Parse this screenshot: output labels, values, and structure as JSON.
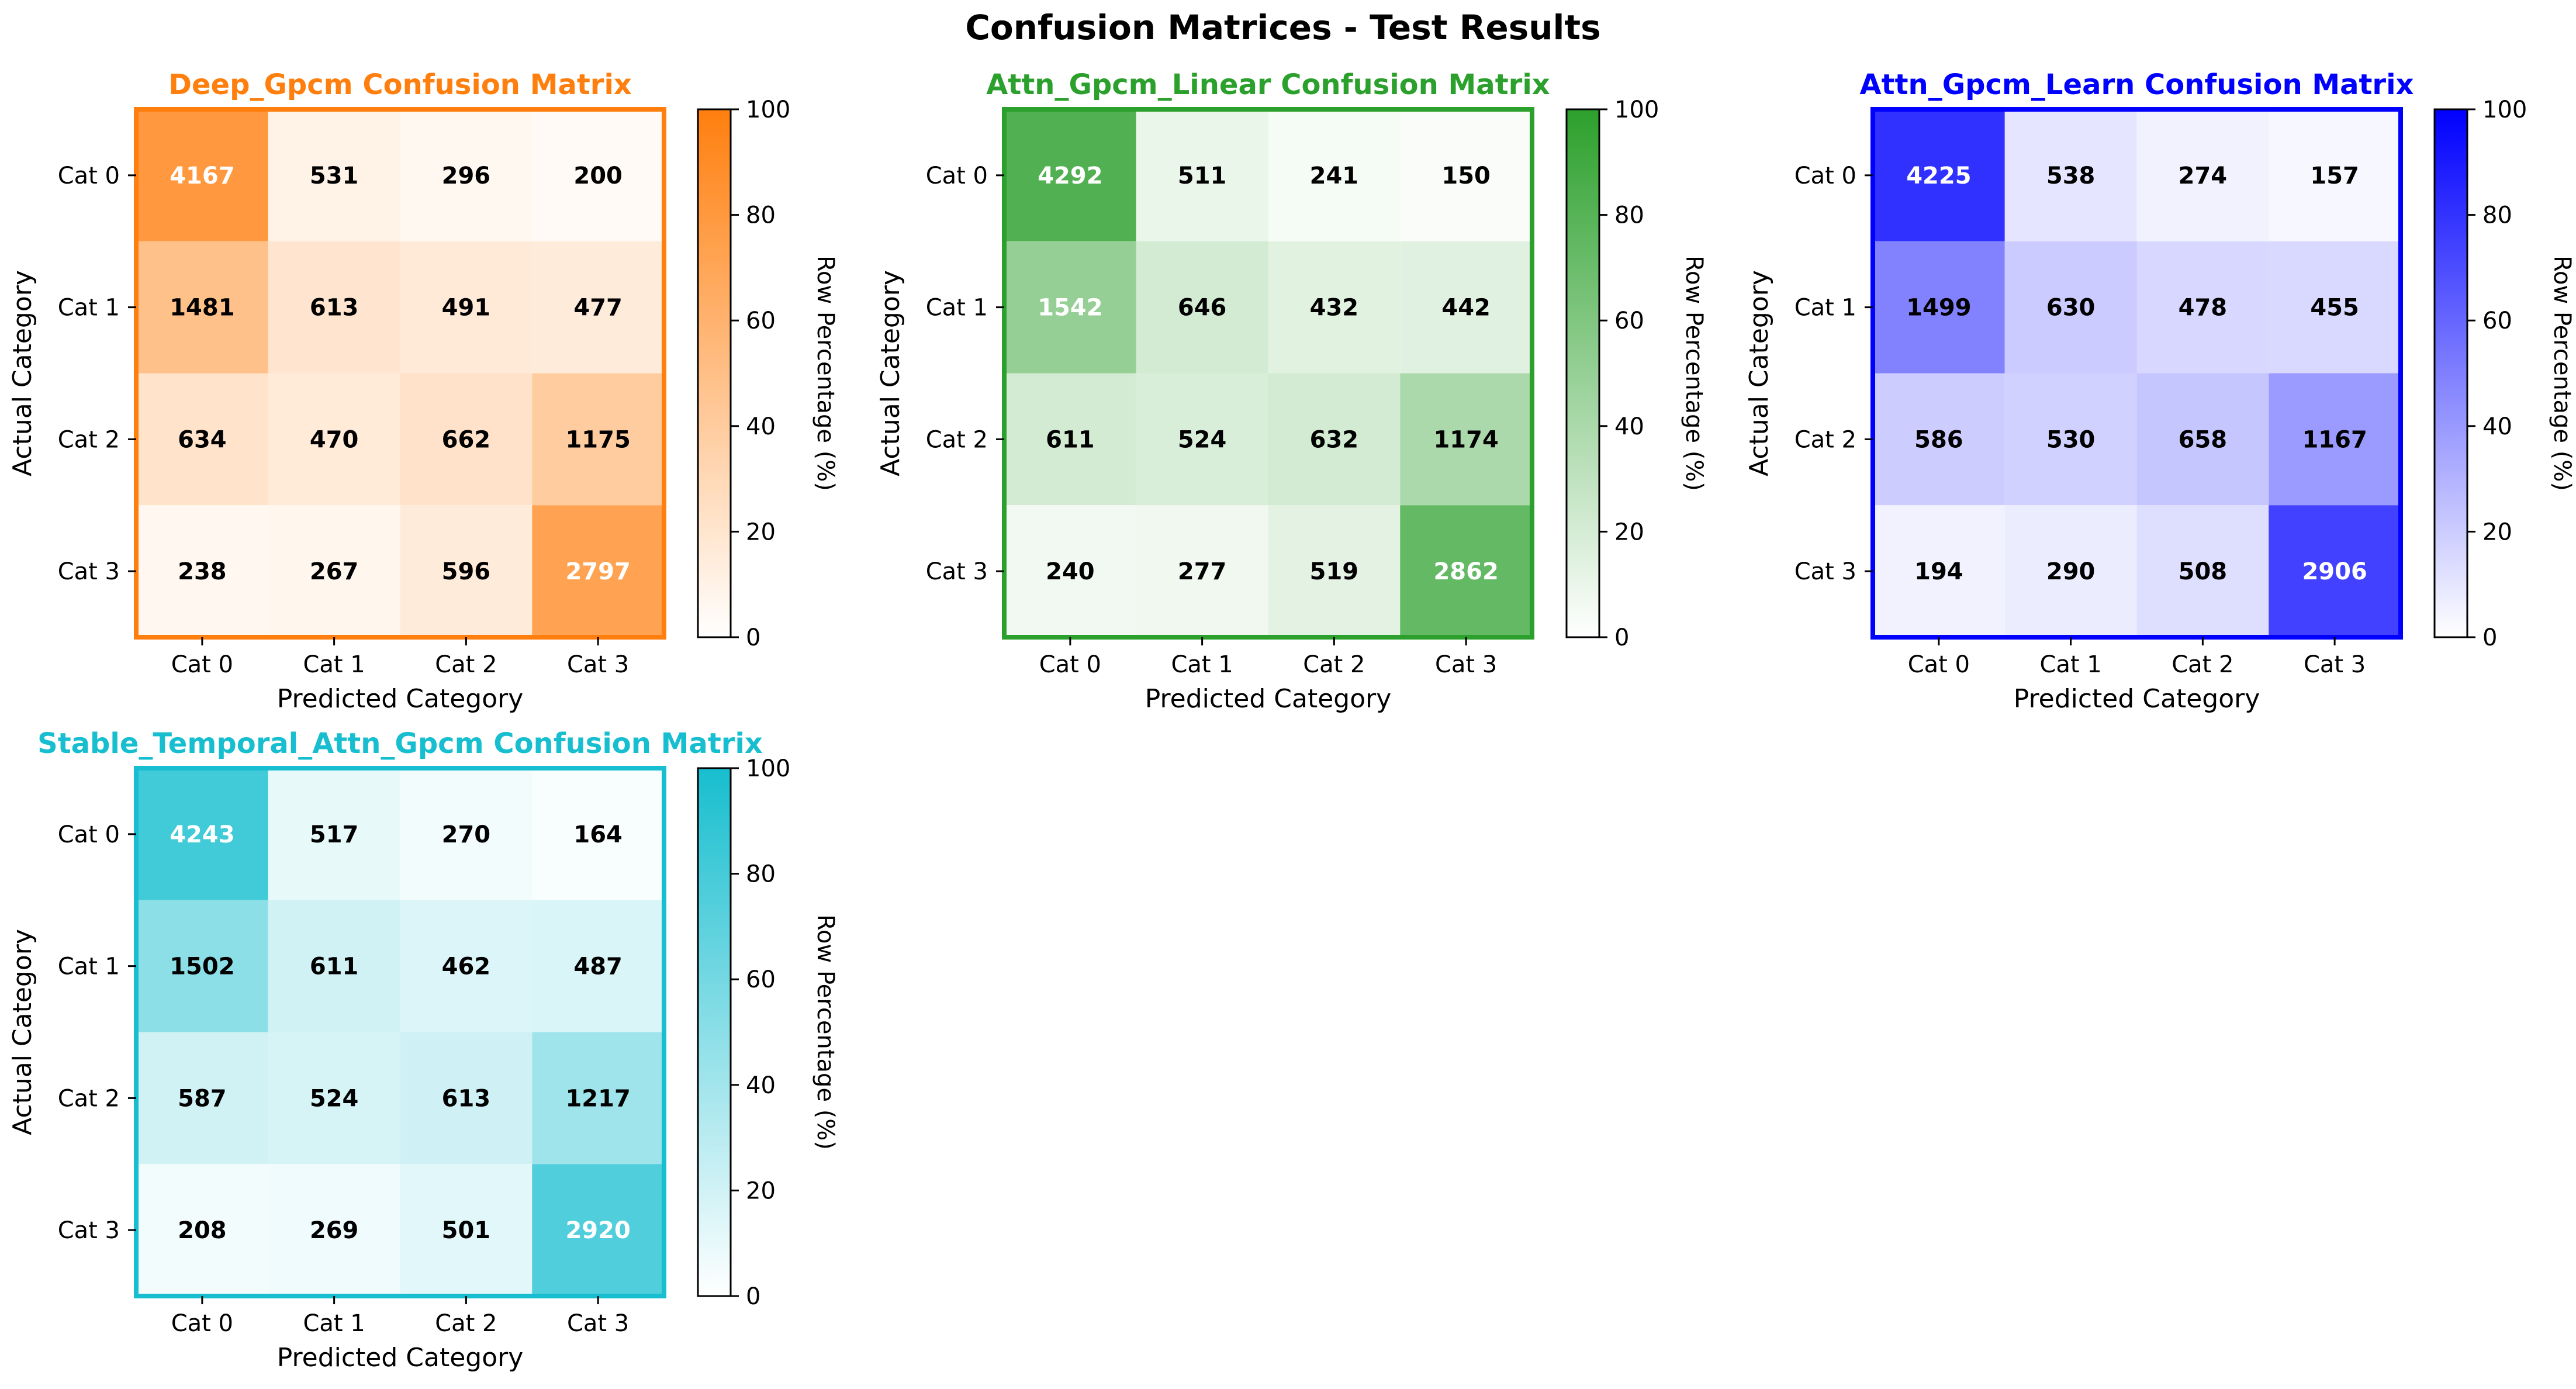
{
  "figure": {
    "title": "Confusion Matrices - Test Results"
  },
  "chart_data": [
    {
      "type": "heatmap",
      "title": "Deep_Gpcm Confusion Matrix",
      "title_color": "#ff7f0e",
      "xlabel": "Predicted Category",
      "ylabel": "Actual Category",
      "x_categories": [
        "Cat 0",
        "Cat 1",
        "Cat 2",
        "Cat 3"
      ],
      "y_categories": [
        "Cat 0",
        "Cat 1",
        "Cat 2",
        "Cat 3"
      ],
      "values": [
        [
          4167,
          531,
          296,
          200
        ],
        [
          1481,
          613,
          491,
          477
        ],
        [
          634,
          470,
          662,
          1175
        ],
        [
          238,
          267,
          596,
          2797
        ]
      ],
      "colorbar": {
        "label": "Row Percentage (%)",
        "range": [
          0,
          100
        ],
        "ticks": [
          "0",
          "20",
          "40",
          "60",
          "80",
          "100"
        ],
        "low_color": "#ffffff",
        "high_color": "#ff7f0e"
      }
    },
    {
      "type": "heatmap",
      "title": "Attn_Gpcm_Linear Confusion Matrix",
      "title_color": "#2ca02c",
      "xlabel": "Predicted Category",
      "ylabel": "Actual Category",
      "x_categories": [
        "Cat 0",
        "Cat 1",
        "Cat 2",
        "Cat 3"
      ],
      "y_categories": [
        "Cat 0",
        "Cat 1",
        "Cat 2",
        "Cat 3"
      ],
      "values": [
        [
          4292,
          511,
          241,
          150
        ],
        [
          1542,
          646,
          432,
          442
        ],
        [
          611,
          524,
          632,
          1174
        ],
        [
          240,
          277,
          519,
          2862
        ]
      ],
      "colorbar": {
        "label": "Row Percentage (%)",
        "range": [
          0,
          100
        ],
        "ticks": [
          "0",
          "20",
          "40",
          "60",
          "80",
          "100"
        ],
        "low_color": "#ffffff",
        "high_color": "#2ca02c"
      }
    },
    {
      "type": "heatmap",
      "title": "Attn_Gpcm_Learn Confusion Matrix",
      "title_color": "#0000ff",
      "xlabel": "Predicted Category",
      "ylabel": "Actual Category",
      "x_categories": [
        "Cat 0",
        "Cat 1",
        "Cat 2",
        "Cat 3"
      ],
      "y_categories": [
        "Cat 0",
        "Cat 1",
        "Cat 2",
        "Cat 3"
      ],
      "values": [
        [
          4225,
          538,
          274,
          157
        ],
        [
          1499,
          630,
          478,
          455
        ],
        [
          586,
          530,
          658,
          1167
        ],
        [
          194,
          290,
          508,
          2906
        ]
      ],
      "colorbar": {
        "label": "Row Percentage (%)",
        "range": [
          0,
          100
        ],
        "ticks": [
          "0",
          "20",
          "40",
          "60",
          "80",
          "100"
        ],
        "low_color": "#ffffff",
        "high_color": "#0000ff"
      }
    },
    {
      "type": "heatmap",
      "title": "Stable_Temporal_Attn_Gpcm Confusion Matrix",
      "title_color": "#17becf",
      "xlabel": "Predicted Category",
      "ylabel": "Actual Category",
      "x_categories": [
        "Cat 0",
        "Cat 1",
        "Cat 2",
        "Cat 3"
      ],
      "y_categories": [
        "Cat 0",
        "Cat 1",
        "Cat 2",
        "Cat 3"
      ],
      "values": [
        [
          4243,
          517,
          270,
          164
        ],
        [
          1502,
          611,
          462,
          487
        ],
        [
          587,
          524,
          613,
          1217
        ],
        [
          208,
          269,
          501,
          2920
        ]
      ],
      "colorbar": {
        "label": "Row Percentage (%)",
        "range": [
          0,
          100
        ],
        "ticks": [
          "0",
          "20",
          "40",
          "60",
          "80",
          "100"
        ],
        "low_color": "#ffffff",
        "high_color": "#17becf"
      }
    }
  ]
}
